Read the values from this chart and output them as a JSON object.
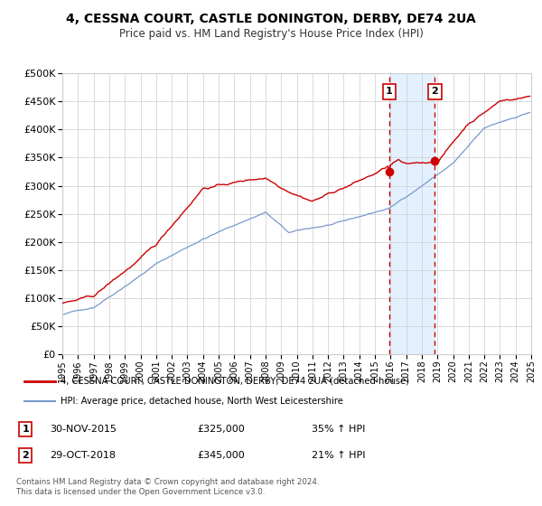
{
  "title": "4, CESSNA COURT, CASTLE DONINGTON, DERBY, DE74 2UA",
  "subtitle": "Price paid vs. HM Land Registry's House Price Index (HPI)",
  "legend_line1": "4, CESSNA COURT, CASTLE DONINGTON, DERBY, DE74 2UA (detached house)",
  "legend_line2": "HPI: Average price, detached house, North West Leicestershire",
  "annotation1_label": "1",
  "annotation1_date": "30-NOV-2015",
  "annotation1_price": "£325,000",
  "annotation1_hpi": "35% ↑ HPI",
  "annotation2_label": "2",
  "annotation2_date": "29-OCT-2018",
  "annotation2_price": "£345,000",
  "annotation2_hpi": "21% ↑ HPI",
  "footer": "Contains HM Land Registry data © Crown copyright and database right 2024.\nThis data is licensed under the Open Government Licence v3.0.",
  "sale1_year": 2015.917,
  "sale1_value": 325000,
  "sale2_year": 2018.833,
  "sale2_value": 345000,
  "red_color": "#cc0000",
  "blue_color": "#7799cc",
  "shade_color": "#ddeeff",
  "dashed_color": "#cc0000",
  "background_color": "#ffffff",
  "grid_color": "#cccccc",
  "ylim_max": 500000,
  "ylim_min": 0,
  "xmin": 1995,
  "xmax": 2025
}
